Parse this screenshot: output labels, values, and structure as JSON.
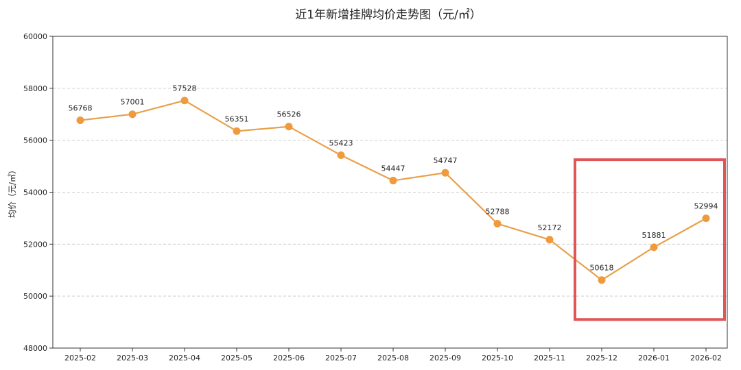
{
  "chart_data": {
    "type": "line",
    "title": "近1年新增挂牌均价走势图（元/㎡）",
    "xlabel": "",
    "ylabel": "均价（元/㎡）",
    "ylim": [
      48000,
      60000
    ],
    "yticks": [
      48000,
      50000,
      52000,
      54000,
      56000,
      58000,
      60000
    ],
    "grid": "horizontal dashed",
    "categories": [
      "2025-02",
      "2025-03",
      "2025-04",
      "2025-05",
      "2025-06",
      "2025-07",
      "2025-08",
      "2025-09",
      "2025-10",
      "2025-11",
      "2025-12",
      "2026-01",
      "2026-02"
    ],
    "series": [
      {
        "name": "均价",
        "values": [
          56768,
          57001,
          57528,
          56351,
          56526,
          55423,
          54447,
          54747,
          52788,
          52172,
          50618,
          51881,
          52994
        ]
      }
    ],
    "colors": {
      "line": "#e8a04a",
      "marker": "#f09a3e",
      "highlight": "#e05555",
      "grid": "#cccccc"
    },
    "annotations": [
      {
        "type": "highlight-box",
        "from": "2025-12",
        "to": "2026-02",
        "y_range": [
          49100,
          55250
        ]
      }
    ]
  }
}
